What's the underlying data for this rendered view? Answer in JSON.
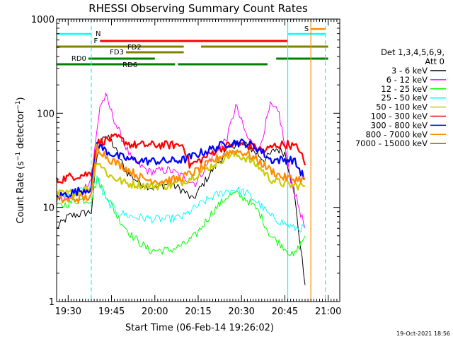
{
  "chart_data": {
    "type": "line",
    "title": "RHESSI Observing Summary Count Rates",
    "xlabel": "Start Time (06-Feb-14 19:26:02)",
    "ylabel": "Count Rate (s⁻¹ detector⁻¹)",
    "ylabel_main": "Count Rate (s",
    "ylabel_sup1": "−1",
    "ylabel_mid": " detector",
    "ylabel_sup2": "−1",
    "ylabel_end": ")",
    "y_scale": "log",
    "ylim": [
      1,
      1000
    ],
    "y_ticks": [
      {
        "value": 1,
        "label": "1"
      },
      {
        "value": 10,
        "label": "10"
      },
      {
        "value": 100,
        "label": "100"
      },
      {
        "value": 1000,
        "label": "1000"
      }
    ],
    "xlim": [
      "19:26",
      "21:04"
    ],
    "x_ticks": [
      "19:30",
      "19:45",
      "20:00",
      "20:15",
      "20:30",
      "20:45",
      "21:00"
    ],
    "legend_position": "right",
    "legend_header": [
      "Det 1,3,4,5,6,9,",
      "Att 0"
    ],
    "timestamp": "19-Oct-2021 18:56",
    "series": [
      {
        "name": "3 - 6 keV",
        "color": "#000000",
        "points": [
          [
            "19:26",
            6
          ],
          [
            "19:30",
            8
          ],
          [
            "19:34",
            8.5
          ],
          [
            "19:38",
            9
          ],
          [
            "19:40",
            35
          ],
          [
            "19:42",
            60
          ],
          [
            "19:45",
            50
          ],
          [
            "19:50",
            24
          ],
          [
            "19:55",
            18
          ],
          [
            "20:00",
            16
          ],
          [
            "20:05",
            18
          ],
          [
            "20:10",
            15
          ],
          [
            "20:13",
            12
          ],
          [
            "20:20",
            25
          ],
          [
            "20:25",
            40
          ],
          [
            "20:28",
            48
          ],
          [
            "20:32",
            45
          ],
          [
            "20:38",
            32
          ],
          [
            "20:42",
            42
          ],
          [
            "20:45",
            38
          ],
          [
            "20:48",
            16
          ],
          [
            "20:52",
            1.5
          ]
        ]
      },
      {
        "name": "6 - 12 keV",
        "color": "#ff00ff",
        "points": [
          [
            "19:26",
            12
          ],
          [
            "19:30",
            13
          ],
          [
            "19:34",
            14
          ],
          [
            "19:38",
            20
          ],
          [
            "19:41",
            120
          ],
          [
            "19:43",
            150
          ],
          [
            "19:47",
            70
          ],
          [
            "19:52",
            32
          ],
          [
            "19:58",
            24
          ],
          [
            "20:05",
            25
          ],
          [
            "20:10",
            21
          ],
          [
            "20:14",
            18
          ],
          [
            "20:20",
            35
          ],
          [
            "20:25",
            55
          ],
          [
            "20:28",
            120
          ],
          [
            "20:32",
            55
          ],
          [
            "20:36",
            40
          ],
          [
            "20:40",
            120
          ],
          [
            "20:43",
            100
          ],
          [
            "20:47",
            20
          ],
          [
            "20:52",
            6
          ]
        ]
      },
      {
        "name": "12 - 25 keV",
        "color": "#00ff00",
        "points": [
          [
            "19:26",
            10
          ],
          [
            "19:30",
            11
          ],
          [
            "19:34",
            12
          ],
          [
            "19:38",
            12
          ],
          [
            "19:40",
            20
          ],
          [
            "19:43",
            14
          ],
          [
            "19:47",
            8
          ],
          [
            "19:52",
            5
          ],
          [
            "19:58",
            3.5
          ],
          [
            "20:05",
            3.5
          ],
          [
            "20:10",
            4
          ],
          [
            "20:14",
            5
          ],
          [
            "20:20",
            9
          ],
          [
            "20:25",
            13
          ],
          [
            "20:28",
            14
          ],
          [
            "20:32",
            12
          ],
          [
            "20:36",
            9
          ],
          [
            "20:40",
            5
          ],
          [
            "20:44",
            4
          ],
          [
            "20:48",
            3
          ],
          [
            "20:52",
            5
          ]
        ]
      },
      {
        "name": "25 - 50 keV",
        "color": "#00ffff",
        "points": [
          [
            "19:26",
            13
          ],
          [
            "19:30",
            14
          ],
          [
            "19:34",
            15
          ],
          [
            "19:38",
            16
          ],
          [
            "19:40",
            20
          ],
          [
            "19:43",
            12
          ],
          [
            "19:47",
            9
          ],
          [
            "19:52",
            8
          ],
          [
            "20:00",
            7.5
          ],
          [
            "20:05",
            7.5
          ],
          [
            "20:10",
            8
          ],
          [
            "20:14",
            10
          ],
          [
            "20:20",
            13
          ],
          [
            "20:25",
            15
          ],
          [
            "20:28",
            15.5
          ],
          [
            "20:32",
            14
          ],
          [
            "20:36",
            11
          ],
          [
            "20:40",
            8
          ],
          [
            "20:44",
            7
          ],
          [
            "20:48",
            6
          ],
          [
            "20:52",
            6
          ]
        ]
      },
      {
        "name": "50 - 100 keV",
        "color": "#cccc00",
        "points": [
          [
            "19:26",
            14
          ],
          [
            "19:30",
            14
          ],
          [
            "19:34",
            15
          ],
          [
            "19:38",
            16
          ],
          [
            "19:40",
            32
          ],
          [
            "19:44",
            22
          ],
          [
            "19:50",
            18
          ],
          [
            "19:58",
            17
          ],
          [
            "20:05",
            17
          ],
          [
            "20:10",
            19
          ],
          [
            "20:14",
            22
          ],
          [
            "20:20",
            28
          ],
          [
            "20:25",
            35
          ],
          [
            "20:28",
            36
          ],
          [
            "20:32",
            33
          ],
          [
            "20:36",
            27
          ],
          [
            "20:40",
            20
          ],
          [
            "20:44",
            18
          ],
          [
            "20:48",
            17
          ],
          [
            "20:52",
            17
          ]
        ]
      },
      {
        "name": "100 - 300 keV",
        "color": "#ff0000",
        "points": [
          [
            "19:26",
            19
          ],
          [
            "19:30",
            21
          ],
          [
            "19:34",
            22
          ],
          [
            "19:38",
            23
          ],
          [
            "19:40",
            48
          ],
          [
            "19:43",
            52
          ],
          [
            "19:47",
            55
          ],
          [
            "19:52",
            46
          ],
          [
            "19:58",
            46
          ],
          [
            "20:05",
            46
          ],
          [
            "20:10",
            46
          ],
          [
            "20:12",
            28
          ],
          [
            "20:16",
            32
          ],
          [
            "20:22",
            42
          ],
          [
            "20:28",
            48
          ],
          [
            "20:32",
            45
          ],
          [
            "20:38",
            40
          ],
          [
            "20:42",
            46
          ],
          [
            "20:46",
            47
          ],
          [
            "20:50",
            42
          ],
          [
            "20:52",
            28
          ]
        ]
      },
      {
        "name": "300 - 800 keV",
        "color": "#0000ff",
        "points": [
          [
            "19:26",
            13
          ],
          [
            "19:30",
            14
          ],
          [
            "19:34",
            15
          ],
          [
            "19:38",
            16
          ],
          [
            "19:40",
            47
          ],
          [
            "19:43",
            40
          ],
          [
            "19:47",
            35
          ],
          [
            "19:52",
            32
          ],
          [
            "19:58",
            31
          ],
          [
            "20:05",
            31
          ],
          [
            "20:10",
            32
          ],
          [
            "20:14",
            36
          ],
          [
            "20:20",
            42
          ],
          [
            "20:25",
            48
          ],
          [
            "20:28",
            49
          ],
          [
            "20:32",
            48
          ],
          [
            "20:36",
            42
          ],
          [
            "20:40",
            32
          ],
          [
            "20:44",
            32
          ],
          [
            "20:48",
            32
          ],
          [
            "20:52",
            20
          ]
        ]
      },
      {
        "name": "800 - 7000 keV",
        "color": "#ff8c00",
        "points": [
          [
            "19:26",
            12
          ],
          [
            "19:30",
            12
          ],
          [
            "19:34",
            12.5
          ],
          [
            "19:38",
            13
          ],
          [
            "19:40",
            44
          ],
          [
            "19:44",
            33
          ],
          [
            "19:50",
            26
          ],
          [
            "19:56",
            20
          ],
          [
            "20:02",
            19
          ],
          [
            "20:08",
            20
          ],
          [
            "20:14",
            24
          ],
          [
            "20:20",
            31
          ],
          [
            "20:25",
            38
          ],
          [
            "20:28",
            40
          ],
          [
            "20:32",
            37
          ],
          [
            "20:36",
            31
          ],
          [
            "20:40",
            25
          ],
          [
            "20:44",
            21
          ],
          [
            "20:48",
            20
          ],
          [
            "20:52",
            20
          ]
        ]
      },
      {
        "name": "7000 - 15000 keV",
        "color": "#808000",
        "points": []
      }
    ],
    "status_bars": [
      {
        "label": "N",
        "color": "#00ffff",
        "segments": [
          [
            "19:26",
            "19:38"
          ],
          [
            "20:46",
            "20:59"
          ]
        ]
      },
      {
        "label": "F",
        "color": "#ff0000",
        "segments": [
          [
            "19:41",
            "20:46"
          ]
        ]
      },
      {
        "label": "S",
        "color": "#ff8c00",
        "segments": [
          [
            "20:54",
            "20:59"
          ]
        ]
      },
      {
        "label": "FD2",
        "color": "#808000",
        "segments": [
          [
            "19:26",
            "20:10"
          ],
          [
            "20:16",
            "21:00"
          ]
        ]
      },
      {
        "label": "FD3",
        "color": "#808000",
        "segments": [
          [
            "19:50",
            "20:10"
          ]
        ]
      },
      {
        "label": "RD0",
        "color": "#008000",
        "segments": [
          [
            "19:37",
            "20:00"
          ],
          [
            "20:42",
            "21:00"
          ]
        ]
      },
      {
        "label": "RD6",
        "color": "#008000",
        "segments": [
          [
            "19:26",
            "20:07"
          ],
          [
            "20:08",
            "20:39"
          ]
        ]
      }
    ]
  }
}
